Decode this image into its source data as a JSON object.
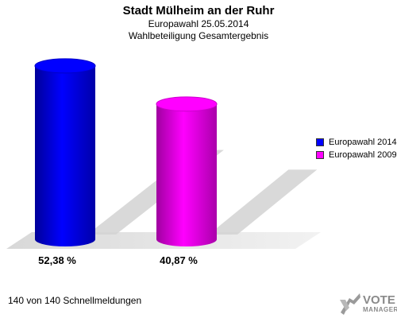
{
  "header": {
    "title": "Stadt Mülheim an der Ruhr",
    "subtitle1": "Europawahl 25.05.2014",
    "subtitle2": "Wahlbeteiligung Gesamtergebnis"
  },
  "chart_data": {
    "type": "bar",
    "categories": [
      "Europawahl 2014",
      "Europawahl 2009"
    ],
    "values": [
      52.38,
      40.87
    ],
    "value_labels": [
      "52,38 %",
      "40,87 %"
    ],
    "colors": [
      "#0000ff",
      "#ff00ff"
    ],
    "legend": [
      "Europawahl 2014",
      "Europawahl 2009"
    ],
    "legend_position": "right",
    "ylim": [
      0,
      55
    ],
    "grid": false
  },
  "footer": {
    "text": "140 von 140 Schnellmeldungen"
  },
  "logo": {
    "line1": "VOTE",
    "line2": "MANAGER",
    "icon": "vote-manager-logo-icon"
  }
}
